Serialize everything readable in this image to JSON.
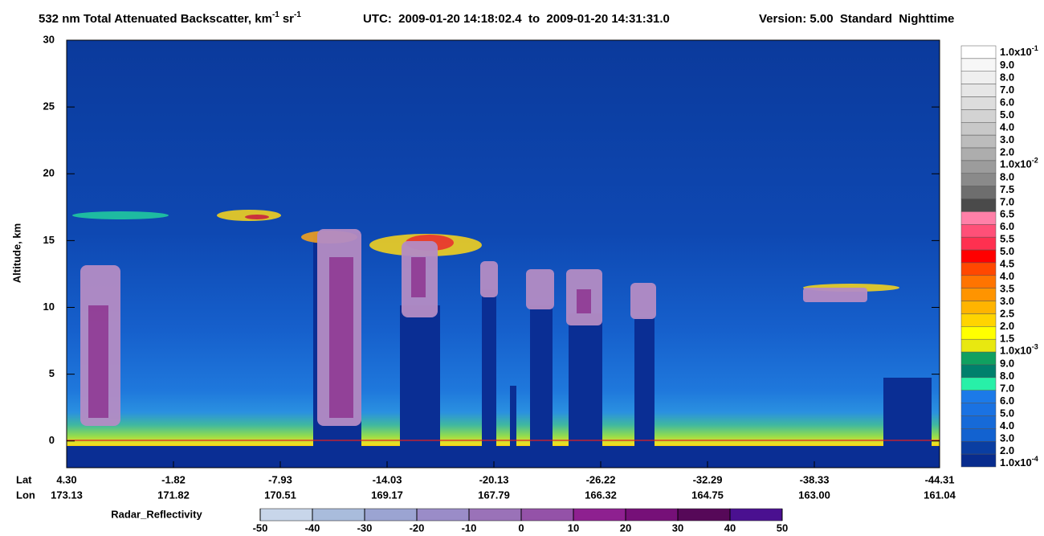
{
  "chart_data": {
    "type": "curtain",
    "title": {
      "main": "532 nm Total Attenuated Backscatter, km",
      "sup1": "-1",
      "unit2": "sr",
      "sup2": "-1",
      "utc": "UTC:  2009-01-20 14:18:02.4  to  2009-01-20 14:31:31.0",
      "version": "Version: 5.00  Standard  Nighttime"
    },
    "ylabel": "Altitude, km",
    "ylim": [
      -2,
      30
    ],
    "yticks": [
      0,
      5,
      10,
      15,
      20,
      25,
      30
    ],
    "x_labels": {
      "lat_title": "Lat",
      "lon_title": "Lon",
      "lat": [
        "4.30",
        "-1.82",
        "-7.93",
        "-14.03",
        "-20.13",
        "-26.22",
        "-32.29",
        "-38.33",
        "-44.31"
      ],
      "lon": [
        "173.13",
        "171.82",
        "170.51",
        "169.17",
        "167.79",
        "166.32",
        "164.75",
        "163.00",
        "161.04"
      ]
    },
    "colorbar": {
      "labels": [
        {
          "text": "1.0x10",
          "sup": "-1"
        },
        "9.0",
        "8.0",
        "7.0",
        "6.0",
        "5.0",
        "4.0",
        "3.0",
        "2.0",
        {
          "text": "1.0x10",
          "sup": "-2"
        },
        "8.0",
        "7.5",
        "7.0",
        "6.5",
        "6.0",
        "5.5",
        "5.0",
        "4.5",
        "4.0",
        "3.5",
        "3.0",
        "2.5",
        "2.0",
        "1.5",
        {
          "text": "1.0x10",
          "sup": "-3"
        },
        "9.0",
        "8.0",
        "7.0",
        "6.0",
        "5.0",
        "4.0",
        "3.0",
        "2.0",
        {
          "text": "1.0x10",
          "sup": "-4"
        }
      ],
      "colors": [
        "#ffffff",
        "#f7f7f7",
        "#efefef",
        "#e6e6e6",
        "#dddddd",
        "#d3d3d3",
        "#c8c8c8",
        "#bcbcbc",
        "#adadad",
        "#9c9c9c",
        "#8a8a8a",
        "#6e6e6e",
        "#4a4a4a",
        "#ff80a8",
        "#ff5078",
        "#ff3050",
        "#ff0000",
        "#ff4800",
        "#ff7400",
        "#ff9400",
        "#ffb400",
        "#ffd400",
        "#ffff00",
        "#e8e810",
        "#10a060",
        "#00806c",
        "#28f0a8",
        "#1c7ae8",
        "#1a72e2",
        "#166ad8",
        "#1262d0",
        "#0a3ea2",
        "#082c8e"
      ]
    },
    "radar": {
      "label": "Radar_Reflectivity",
      "lim": [
        -50,
        50
      ],
      "ticks": [
        -50,
        -40,
        -30,
        -20,
        -10,
        0,
        10,
        20,
        30,
        40,
        50
      ],
      "colors": [
        "#c8d6ea",
        "#a9bcdc",
        "#9ba4d2",
        "#9a8cc8",
        "#9a72b8",
        "#9452a8",
        "#8e2090",
        "#761078",
        "#560858",
        "#4a1090"
      ]
    }
  }
}
